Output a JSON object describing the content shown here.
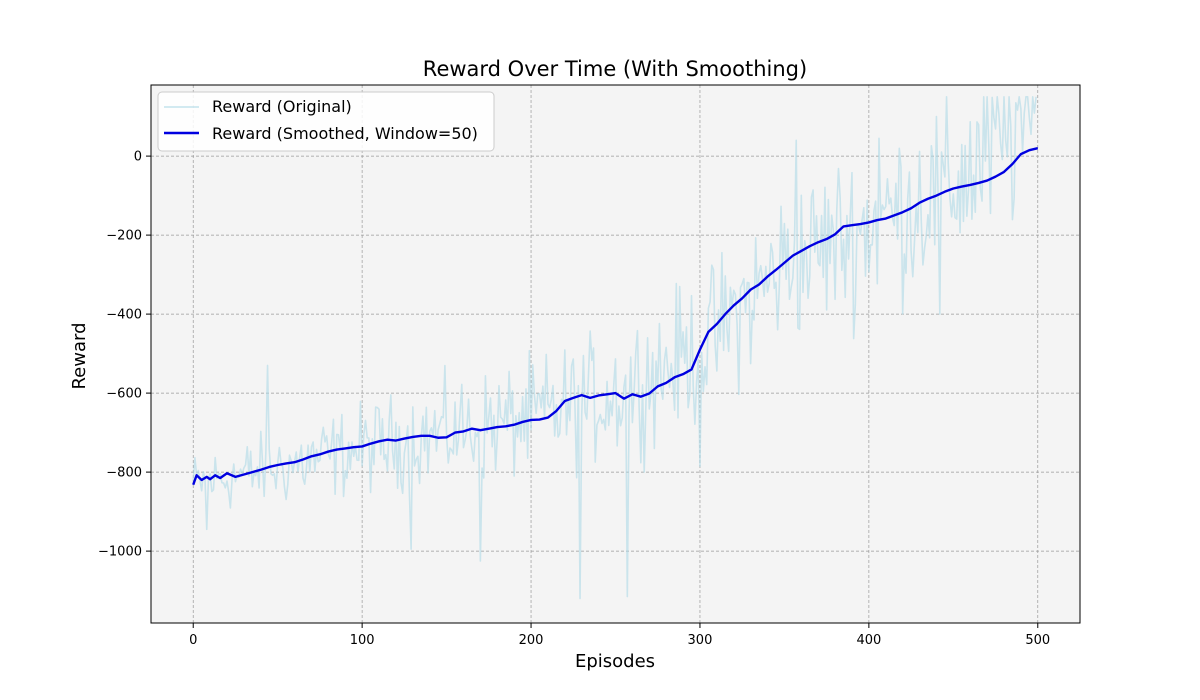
{
  "chart_data": {
    "type": "line",
    "title": "Reward Over Time (With Smoothing)",
    "xlabel": "Episodes",
    "ylabel": "Reward",
    "xlim": [
      -25,
      525
    ],
    "ylim": [
      -1182,
      180
    ],
    "xticks": [
      0,
      100,
      200,
      300,
      400,
      500
    ],
    "yticks": [
      -1000,
      -800,
      -600,
      -400,
      -200,
      0
    ],
    "xtick_labels": [
      "0",
      "100",
      "200",
      "300",
      "400",
      "500"
    ],
    "ytick_labels": [
      "−1000",
      "−800",
      "−600",
      "−400",
      "−200",
      "0"
    ],
    "grid": true,
    "legend_position": "top-left",
    "background_color": "#f4f4f4",
    "series": [
      {
        "name": "Reward (Original)",
        "color": "#add8e6",
        "style": "thin translucent line, 500 noisy episodes",
        "anchors": [
          {
            "x": 0,
            "y": -830
          },
          {
            "x": 50,
            "y": -790
          },
          {
            "x": 100,
            "y": -740
          },
          {
            "x": 150,
            "y": -700
          },
          {
            "x": 200,
            "y": -665
          },
          {
            "x": 250,
            "y": -600
          },
          {
            "x": 300,
            "y": -490
          },
          {
            "x": 350,
            "y": -275
          },
          {
            "x": 400,
            "y": -175
          },
          {
            "x": 450,
            "y": -75
          },
          {
            "x": 495,
            "y": 95
          }
        ],
        "notable_points": [
          {
            "x": 8,
            "y": -945
          },
          {
            "x": 44,
            "y": -530
          },
          {
            "x": 129,
            "y": -995
          },
          {
            "x": 170,
            "y": -1025
          },
          {
            "x": 229,
            "y": -1120
          },
          {
            "x": 257,
            "y": -1115
          },
          {
            "x": 300,
            "y": -785
          },
          {
            "x": 357,
            "y": 40
          },
          {
            "x": 406,
            "y": 45
          },
          {
            "x": 442,
            "y": -400
          },
          {
            "x": 490,
            "y": 120
          }
        ]
      },
      {
        "name": "Reward (Smoothed, Window=50)",
        "color": "#0000e0",
        "x": [
          0,
          2,
          5,
          8,
          10,
          13,
          16,
          20,
          25,
          30,
          35,
          40,
          45,
          50,
          55,
          60,
          65,
          70,
          75,
          80,
          85,
          90,
          95,
          100,
          105,
          110,
          115,
          120,
          125,
          130,
          135,
          140,
          145,
          150,
          155,
          160,
          165,
          170,
          175,
          180,
          185,
          190,
          195,
          200,
          205,
          210,
          215,
          220,
          225,
          230,
          235,
          240,
          245,
          250,
          255,
          260,
          265,
          270,
          275,
          280,
          285,
          290,
          295,
          300,
          305,
          310,
          315,
          320,
          325,
          330,
          335,
          340,
          345,
          350,
          355,
          360,
          365,
          370,
          375,
          380,
          385,
          390,
          395,
          400,
          405,
          410,
          415,
          420,
          425,
          430,
          435,
          440,
          445,
          450,
          455,
          460,
          465,
          470,
          475,
          480,
          485,
          490,
          495,
          500
        ],
        "values": [
          -832,
          -808,
          -820,
          -812,
          -818,
          -808,
          -815,
          -803,
          -812,
          -806,
          -800,
          -794,
          -787,
          -782,
          -778,
          -775,
          -768,
          -760,
          -755,
          -748,
          -743,
          -740,
          -737,
          -735,
          -728,
          -722,
          -718,
          -720,
          -715,
          -711,
          -708,
          -708,
          -713,
          -712,
          -700,
          -697,
          -690,
          -694,
          -690,
          -686,
          -684,
          -680,
          -673,
          -668,
          -667,
          -662,
          -645,
          -620,
          -612,
          -605,
          -612,
          -606,
          -603,
          -600,
          -614,
          -603,
          -609,
          -601,
          -583,
          -574,
          -560,
          -552,
          -540,
          -490,
          -445,
          -425,
          -400,
          -378,
          -360,
          -338,
          -325,
          -305,
          -288,
          -270,
          -252,
          -240,
          -228,
          -218,
          -210,
          -198,
          -178,
          -175,
          -172,
          -168,
          -162,
          -158,
          -150,
          -142,
          -132,
          -118,
          -108,
          -100,
          -90,
          -82,
          -77,
          -73,
          -68,
          -62,
          -52,
          -40,
          -20,
          5,
          15,
          20
        ]
      }
    ]
  }
}
